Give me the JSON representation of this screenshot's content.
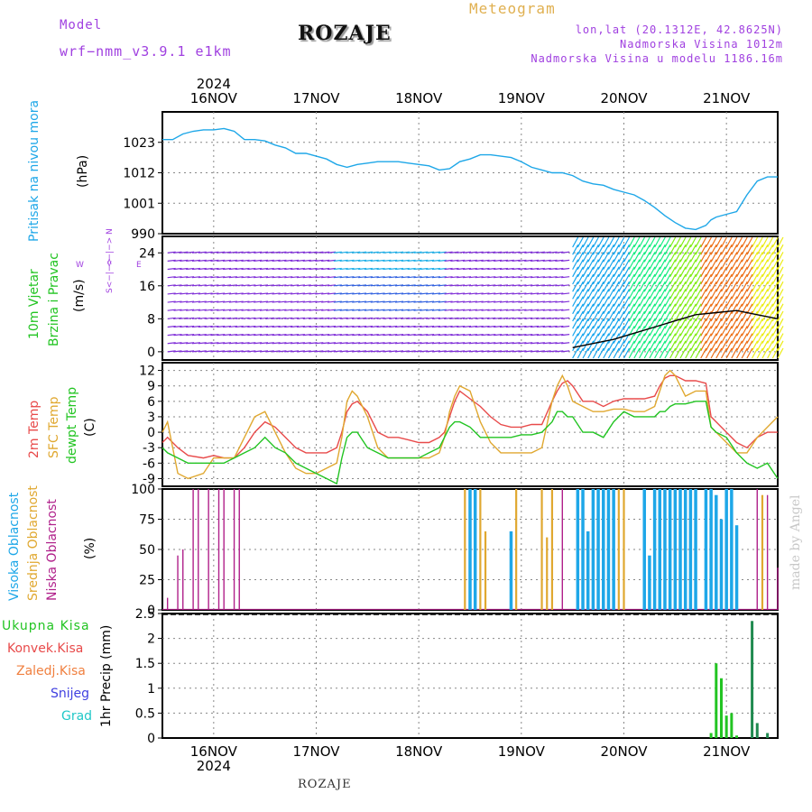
{
  "header": {
    "model_label": "Model",
    "model_name": "wrf−nmm_v3.9.1  e1km",
    "title": "ROZAJE",
    "meteogram_label": "Meteogram",
    "lonlat": "lon,lat (20.1312E, 42.8625N)",
    "altitude": "Nadmorska Visina 1012m",
    "model_altitude": "Nadmorska Visina u modelu 1186.16m"
  },
  "footer": {
    "station": "ROZAJE",
    "made_by": "made by Angel"
  },
  "colors": {
    "pressure": "#1ea7e8",
    "temp2m": "#e84a4a",
    "sfc_temp": "#e0a830",
    "dewpt": "#22c422",
    "high_cloud": "#1ea7e8",
    "mid_cloud": "#e0a830",
    "low_cloud": "#b0208a",
    "total_precip": "#22c422",
    "conv_precip": "#e84a4a",
    "frz_precip": "#f08040",
    "snow": "#4040e0",
    "hail": "#20c8c8",
    "wind_dir": "#a040e0"
  },
  "panels": {
    "pressure": {
      "label": "Pritisak na nivou mora",
      "unit": "(hPa)"
    },
    "wind": {
      "label1": "10m Vjetar",
      "label2": "Brzina i Pravac",
      "unit": "(m/s)",
      "dir_w": "W",
      "dir_e": "E",
      "dir_n": "<−|−> N",
      "dir_s": "S<−|−>"
    },
    "temp": {
      "label_2m": "2m Temp",
      "label_sfc": "SFC Temp",
      "label_dew": "dewpt Temp",
      "unit": "(C)"
    },
    "cloud": {
      "label_high": "Visoka Oblacnost",
      "label_mid": "Srednja Oblacnost",
      "label_low": "Niska Oblacnost",
      "unit": "(%)"
    },
    "precip": {
      "unit": "1hr Precip (mm)",
      "legend": [
        "Ukupna Kisa",
        "Konvek.Kisa",
        "Zaledj.Kisa",
        "Snijeg",
        "Grad"
      ]
    }
  },
  "chart_data": [
    {
      "type": "line",
      "title": "Pritisak na nivou mora",
      "ylabel": "(hPa)",
      "ylim": [
        990,
        1034
      ],
      "yticks": [
        990,
        1001,
        1012,
        1023
      ],
      "x_axis": {
        "days": [
          "16NOV",
          "17NOV",
          "18NOV",
          "19NOV",
          "20NOV",
          "21NOV"
        ],
        "year": "2024",
        "xlim_days": [
          -0.5,
          5.5
        ]
      },
      "series": [
        {
          "x_days": [
            -0.5,
            -0.4,
            -0.3,
            -0.2,
            -0.1,
            0,
            0.1,
            0.2,
            0.3,
            0.4,
            0.5,
            0.6,
            0.7,
            0.8,
            0.9,
            1,
            1.1,
            1.2,
            1.3,
            1.4,
            1.5,
            1.6,
            1.7,
            1.8,
            1.9,
            2,
            2.1,
            2.2,
            2.3,
            2.4,
            2.5,
            2.6,
            2.7,
            2.8,
            2.9,
            3,
            3.1,
            3.2,
            3.3,
            3.4,
            3.5,
            3.6,
            3.7,
            3.8,
            3.9,
            4,
            4.1,
            4.2,
            4.3,
            4.4,
            4.5,
            4.6,
            4.7,
            4.8,
            4.85,
            4.9,
            5,
            5.1,
            5.2,
            5.3,
            5.4,
            5.5
          ],
          "values": [
            1024,
            1024,
            1026,
            1027,
            1027.5,
            1027.5,
            1028,
            1027,
            1024,
            1024,
            1023.5,
            1022,
            1021,
            1019,
            1019,
            1018,
            1017,
            1015,
            1014,
            1015,
            1015.5,
            1016,
            1016,
            1016,
            1015.5,
            1015,
            1014.5,
            1013,
            1013.5,
            1016,
            1017,
            1018.5,
            1018.5,
            1018,
            1017.5,
            1016,
            1014,
            1013,
            1012,
            1012,
            1011,
            1009,
            1008,
            1007.5,
            1006,
            1005,
            1004,
            1002,
            999.5,
            996.5,
            994,
            992,
            991.5,
            993,
            995,
            996,
            997,
            998,
            1004,
            1009,
            1010.5,
            1010.5
          ]
        }
      ]
    },
    {
      "type": "scatter",
      "title": "10m Vjetar",
      "ylabel": "(m/s)",
      "ylim": [
        -2,
        28
      ],
      "yticks": [
        0,
        8,
        16,
        24
      ],
      "series": [
        {
          "name": "10m wind speed",
          "x_days": [
            3.5,
            3.7,
            3.9,
            4.1,
            4.3,
            4.5,
            4.7,
            4.9,
            5.1,
            5.3,
            5.5
          ],
          "values": [
            1.0,
            2.0,
            3.0,
            4.5,
            6.0,
            7.5,
            9.0,
            9.5,
            10.0,
            9.0,
            8.0
          ]
        }
      ]
    },
    {
      "type": "line",
      "title": "2m Temp / SFC Temp / dewpt Temp",
      "ylabel": "(C)",
      "ylim": [
        -10.5,
        13.5
      ],
      "yticks": [
        -9,
        -6,
        -3,
        0,
        3,
        6,
        9,
        12
      ],
      "series": [
        {
          "name": "2m Temp",
          "x_days": [
            -0.5,
            -0.45,
            -0.35,
            -0.25,
            -0.1,
            0,
            0.1,
            0.2,
            0.3,
            0.4,
            0.5,
            0.6,
            0.7,
            0.8,
            0.9,
            1,
            1.1,
            1.2,
            1.25,
            1.3,
            1.35,
            1.4,
            1.5,
            1.6,
            1.7,
            1.8,
            1.9,
            2,
            2.1,
            2.2,
            2.25,
            2.3,
            2.35,
            2.4,
            2.5,
            2.6,
            2.7,
            2.8,
            2.9,
            3,
            3.1,
            3.2,
            3.3,
            3.35,
            3.4,
            3.45,
            3.5,
            3.6,
            3.7,
            3.8,
            3.9,
            4,
            4.1,
            4.2,
            4.3,
            4.35,
            4.4,
            4.45,
            4.5,
            4.6,
            4.7,
            4.8,
            4.85,
            4.9,
            5,
            5.1,
            5.2,
            5.3,
            5.4,
            5.5
          ],
          "values": [
            -2,
            -1,
            -3,
            -4.5,
            -5,
            -4.5,
            -5,
            -5,
            -3,
            0,
            2,
            1,
            -1,
            -3,
            -4,
            -4,
            -4,
            -3,
            0,
            4,
            5.5,
            6,
            4,
            0,
            -1,
            -1,
            -1.5,
            -2,
            -2,
            -1,
            0,
            3,
            6,
            8,
            6.5,
            5,
            3,
            1.5,
            1,
            1,
            1.5,
            1.5,
            6,
            8,
            9.5,
            10,
            9,
            6,
            6,
            5,
            6,
            6.5,
            6.5,
            6.5,
            7,
            9,
            10.5,
            11,
            11,
            10,
            10,
            9.5,
            3,
            2,
            0,
            -2,
            -3,
            -1,
            0,
            0
          ]
        },
        {
          "name": "SFC Temp",
          "x_days": [
            -0.5,
            -0.45,
            -0.35,
            -0.25,
            -0.1,
            0,
            0.1,
            0.2,
            0.3,
            0.4,
            0.5,
            0.6,
            0.7,
            0.8,
            0.9,
            1,
            1.1,
            1.2,
            1.25,
            1.3,
            1.35,
            1.4,
            1.5,
            1.6,
            1.7,
            1.8,
            1.9,
            2,
            2.1,
            2.2,
            2.25,
            2.3,
            2.35,
            2.4,
            2.5,
            2.6,
            2.7,
            2.8,
            2.9,
            3,
            3.1,
            3.2,
            3.3,
            3.35,
            3.4,
            3.45,
            3.5,
            3.6,
            3.7,
            3.8,
            3.9,
            4,
            4.1,
            4.2,
            4.3,
            4.35,
            4.4,
            4.45,
            4.5,
            4.6,
            4.7,
            4.8,
            4.85,
            4.9,
            5,
            5.1,
            5.2,
            5.3,
            5.4,
            5.5
          ],
          "values": [
            0,
            2,
            -8,
            -9,
            -8,
            -5,
            -5,
            -5,
            -1,
            3,
            4,
            0,
            -4,
            -7,
            -8,
            -8,
            -7,
            -6,
            -1,
            6,
            8,
            7,
            3,
            -3,
            -5,
            -5,
            -5,
            -5,
            -5,
            -4,
            -1,
            4,
            7,
            9,
            8,
            2,
            -2,
            -4,
            -4,
            -4,
            -4,
            -3,
            6,
            9,
            11,
            9,
            6,
            5,
            4,
            4,
            4.5,
            4.5,
            4,
            4,
            5,
            8,
            11,
            12,
            11,
            7,
            8,
            8,
            1,
            0,
            -2,
            -4,
            -4,
            -1,
            1,
            3
          ]
        },
        {
          "name": "dewpt Temp",
          "x_days": [
            -0.5,
            -0.45,
            -0.35,
            -0.25,
            -0.1,
            0,
            0.1,
            0.2,
            0.3,
            0.4,
            0.5,
            0.6,
            0.7,
            0.8,
            0.9,
            1,
            1.1,
            1.2,
            1.25,
            1.3,
            1.35,
            1.4,
            1.5,
            1.6,
            1.7,
            1.8,
            1.9,
            2,
            2.1,
            2.2,
            2.25,
            2.3,
            2.35,
            2.4,
            2.5,
            2.6,
            2.7,
            2.8,
            2.9,
            3,
            3.1,
            3.2,
            3.3,
            3.35,
            3.4,
            3.45,
            3.5,
            3.6,
            3.7,
            3.8,
            3.9,
            4,
            4.1,
            4.2,
            4.3,
            4.35,
            4.4,
            4.45,
            4.5,
            4.6,
            4.7,
            4.8,
            4.85,
            4.9,
            5,
            5.1,
            5.2,
            5.3,
            5.4,
            5.5
          ],
          "values": [
            -3,
            -4,
            -5,
            -6,
            -6,
            -6,
            -6,
            -5,
            -4,
            -3,
            -1,
            -3,
            -4,
            -6,
            -7,
            -8,
            -9,
            -10,
            -5,
            -1,
            0,
            0,
            -3,
            -4,
            -5,
            -5,
            -5,
            -5,
            -4,
            -3,
            -1,
            1,
            2,
            2,
            1,
            -1,
            -1,
            -1,
            -1,
            -0.5,
            -0.5,
            0,
            2,
            4,
            4,
            3,
            3,
            0,
            0,
            -1,
            2,
            4,
            3,
            3,
            3,
            4,
            4,
            5,
            5.5,
            5.5,
            6,
            6,
            1,
            0,
            -1,
            -4,
            -6,
            -7,
            -6,
            -9
          ]
        }
      ]
    },
    {
      "type": "bar",
      "title": "Oblacnost",
      "ylabel": "(%)",
      "ylim": [
        0,
        100
      ],
      "yticks": [
        0,
        25,
        50,
        75,
        100
      ],
      "series": [
        {
          "name": "Niska Oblacnost",
          "x_days": [
            -0.45,
            -0.35,
            -0.3,
            -0.2,
            -0.15,
            -0.05,
            0.05,
            0.1,
            0.2,
            0.25,
            3.3,
            3.4,
            5.3,
            5.4,
            5.5
          ],
          "values": [
            10,
            45,
            50,
            100,
            100,
            100,
            100,
            100,
            100,
            100,
            30,
            100,
            100,
            95,
            35
          ]
        },
        {
          "name": "Srednja Oblacnost",
          "x_days": [
            2.45,
            2.5,
            2.55,
            2.6,
            2.65,
            2.9,
            2.95,
            3.2,
            3.25,
            3.3,
            3.55,
            3.8,
            3.9,
            3.95,
            4.0,
            4.4,
            4.8,
            4.85,
            5.35
          ],
          "values": [
            100,
            100,
            100,
            100,
            65,
            60,
            100,
            100,
            60,
            100,
            100,
            95,
            100,
            100,
            100,
            90,
            100,
            100,
            95
          ]
        },
        {
          "name": "Visoka Oblacnost",
          "x_days": [
            2.5,
            2.55,
            2.9,
            3.55,
            3.6,
            3.65,
            3.7,
            3.75,
            3.8,
            3.85,
            3.9,
            4.2,
            4.25,
            4.3,
            4.35,
            4.4,
            4.45,
            4.5,
            4.55,
            4.6,
            4.65,
            4.7,
            4.8,
            4.85,
            4.9,
            4.95,
            5.0,
            5.05,
            5.1
          ],
          "values": [
            100,
            100,
            65,
            100,
            100,
            65,
            100,
            100,
            100,
            100,
            100,
            100,
            45,
            100,
            100,
            100,
            100,
            100,
            100,
            100,
            100,
            100,
            100,
            100,
            95,
            75,
            100,
            100,
            70
          ]
        }
      ]
    },
    {
      "type": "bar",
      "title": "1hr Precip",
      "ylabel": "1hr Precip (mm)",
      "ylim": [
        0,
        2.5
      ],
      "yticks": [
        0,
        0.5,
        1,
        1.5,
        2,
        2.5
      ],
      "series": [
        {
          "name": "Ukupna Kisa",
          "x_days": [
            4.85,
            4.9,
            4.95,
            5.0,
            5.05,
            5.1,
            5.25,
            5.3,
            5.4
          ],
          "values": [
            0.1,
            1.5,
            1.2,
            0.45,
            0.5,
            0.05,
            2.35,
            0.3,
            0.1
          ]
        }
      ]
    }
  ]
}
